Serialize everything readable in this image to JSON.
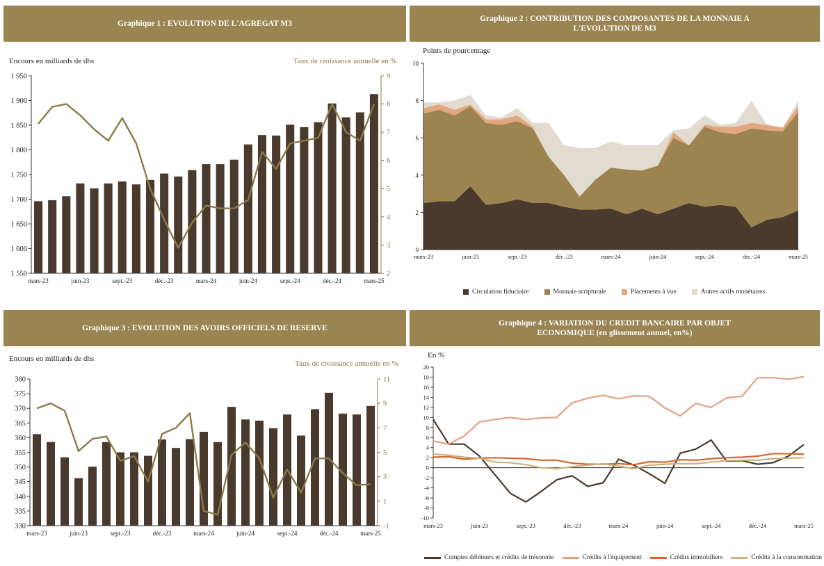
{
  "chart_data": [
    {
      "id": "c1",
      "type": "bar+line",
      "title": "Graphique 1 : EVOLUTION DE L'AGREGAT M3",
      "ylabel": "Encours en milliards de dhs",
      "y2label": "Taux de croissance annuelle en %",
      "ylim": [
        1550,
        1950
      ],
      "y2lim": [
        2,
        9
      ],
      "yticks": [
        "1 550",
        "1 600",
        "1 650",
        "1 700",
        "1 750",
        "1 800",
        "1 850",
        "1 900",
        "1 950"
      ],
      "y2ticks": [
        "2",
        "3",
        "4",
        "5",
        "6",
        "7",
        "8",
        "9"
      ],
      "xticklabels": [
        "mars-23",
        "juin-23",
        "sept.-23",
        "déc.-23",
        "mars-24",
        "juin-24",
        "sept.-24",
        "déc.-24",
        "mars-25"
      ],
      "bars": [
        1696,
        1698,
        1706,
        1732,
        1722,
        1732,
        1736,
        1730,
        1739,
        1752,
        1746,
        1759,
        1771,
        1771,
        1780,
        1811,
        1830,
        1829,
        1851,
        1846,
        1856,
        1894,
        1866,
        1876,
        1913
      ],
      "line": [
        7.3,
        7.9,
        8.0,
        7.6,
        7.1,
        6.7,
        7.5,
        6.6,
        5.0,
        3.9,
        2.9,
        3.8,
        4.4,
        4.3,
        4.3,
        4.6,
        6.3,
        5.7,
        6.6,
        6.7,
        6.8,
        8.0,
        7.0,
        6.7,
        8.0
      ],
      "colors": {
        "bar": "#4a3a2e",
        "line": "#8a7a4a"
      }
    },
    {
      "id": "c2",
      "type": "area",
      "title": "Graphique 2 : CONTRIBUTION DES COMPOSANTES DE  LA MONNAIE A L'EVOLUTION DE M3",
      "ylabel": "Points de pourcentage",
      "ylim": [
        0,
        10
      ],
      "yticks": [
        "0",
        "2",
        "4",
        "6",
        "8",
        "10"
      ],
      "xticklabels": [
        "mars-23",
        "juin-23",
        "sept.-23",
        "déc.-23",
        "mars-24",
        "juin-24",
        "sept.-24",
        "déc.-24",
        "mars-25"
      ],
      "series": [
        {
          "name": "Circulation fiduciaire",
          "color": "#4a3a2e",
          "values": [
            2.5,
            2.6,
            2.6,
            3.4,
            2.4,
            2.5,
            2.7,
            2.5,
            2.5,
            2.3,
            2.15,
            2.15,
            2.2,
            1.9,
            2.2,
            1.9,
            2.2,
            2.5,
            2.3,
            2.4,
            2.3,
            1.2,
            1.6,
            1.75,
            2.1
          ]
        },
        {
          "name": "Monnaie scripturale",
          "color": "#9c8450",
          "values": [
            4.8,
            4.9,
            4.6,
            4.3,
            4.4,
            4.2,
            4.2,
            4.0,
            2.5,
            1.7,
            0.7,
            1.6,
            2.2,
            2.4,
            2.05,
            2.6,
            3.8,
            3.1,
            4.3,
            3.9,
            3.9,
            5.3,
            4.8,
            4.6,
            5.3
          ]
        },
        {
          "name": "Placements à vue",
          "color": "#e2a77f",
          "values": [
            0.3,
            0.3,
            0.3,
            0.1,
            0.2,
            0.3,
            0.3,
            0.1,
            0.0,
            0.0,
            0.0,
            0.0,
            0.0,
            0.0,
            0.0,
            0.0,
            0.3,
            0.0,
            0.1,
            0.3,
            0.4,
            0.3,
            0.3,
            0.2,
            0.3
          ]
        },
        {
          "name": "Autres actifs monétaires",
          "color": "#e2dbd0",
          "values": [
            0.3,
            0.1,
            0.5,
            0.5,
            0.2,
            0.1,
            0.4,
            0.2,
            1.8,
            1.6,
            2.6,
            1.7,
            1.4,
            1.3,
            1.35,
            1.1,
            0.1,
            0.9,
            0.5,
            0.1,
            0.2,
            1.2,
            0.0,
            0.0,
            0.3
          ]
        }
      ]
    },
    {
      "id": "c3",
      "type": "bar+line",
      "title": "Graphique 3 : EVOLUTION DES AVOIRS OFFICIELS DE RESERVE",
      "ylabel": "Encours en milliards de dhs",
      "y2label": "Taux de croissance annuelle en %",
      "ylim": [
        330,
        380
      ],
      "y2lim": [
        -1,
        11
      ],
      "yticks": [
        "330",
        "335",
        "340",
        "345",
        "350",
        "355",
        "360",
        "365",
        "370",
        "375",
        "380"
      ],
      "y2ticks": [
        "-1",
        "1",
        "3",
        "5",
        "7",
        "9",
        "11"
      ],
      "xticklabels": [
        "mars-23",
        "juin-23",
        "sept.-23",
        "déc.-23",
        "mars-24",
        "juin-24",
        "sept.-24",
        "déc.-24",
        "mars-25"
      ],
      "bars": [
        361.2,
        358.5,
        353.3,
        346.2,
        350.1,
        358.5,
        355.0,
        355.0,
        353.8,
        359.4,
        356.5,
        359.5,
        362.0,
        358.5,
        370.5,
        366.2,
        365.8,
        363.2,
        367.9,
        360.7,
        369.7,
        375.3,
        368.2,
        367.9,
        370.8
      ],
      "line": [
        8.6,
        9.0,
        8.4,
        5.1,
        6.1,
        6.3,
        4.3,
        4.7,
        2.6,
        6.5,
        7.0,
        8.2,
        0.2,
        -0.1,
        4.8,
        5.8,
        4.5,
        1.3,
        3.6,
        1.7,
        4.5,
        4.5,
        3.3,
        2.3,
        2.4
      ],
      "colors": {
        "bar": "#4a3a2e",
        "line": "#8a7a4a"
      }
    },
    {
      "id": "c4",
      "type": "line",
      "title": "Graphique 4 : VARIATION DU CREDIT BANCAIRE PAR OBJET ECONOMIQUE (en glissement annuel, en%)",
      "ylabel": "En %",
      "ylim": [
        -10,
        20
      ],
      "yticks": [
        "-10",
        "-8",
        "-6",
        "-4",
        "-2",
        "0",
        "2",
        "4",
        "6",
        "8",
        "10",
        "12",
        "14",
        "16",
        "18",
        "20"
      ],
      "xticklabels": [
        "mars-23",
        "juin-23",
        "sept.-23",
        "déc.-23",
        "mars-24",
        "juin-24",
        "sept.-24",
        "déc.-24",
        "mars-25"
      ],
      "series": [
        {
          "name": "Comptes débiteurs et crédits de trésorerie",
          "color": "#4a3a2e",
          "values": [
            9.6,
            4.7,
            4.7,
            2.3,
            -1.4,
            -5.1,
            -6.8,
            -4.7,
            -2.4,
            -1.6,
            -3.7,
            -3.0,
            1.7,
            0.5,
            -1.2,
            -3.1,
            2.9,
            3.7,
            5.5,
            1.3,
            1.4,
            0.7,
            1.0,
            2.3,
            4.6
          ]
        },
        {
          "name": "Crédits à l'équipement",
          "color": "#e6a07f",
          "values": [
            5.3,
            4.7,
            6.3,
            9.1,
            9.6,
            10.0,
            9.6,
            9.9,
            10.0,
            12.9,
            13.8,
            14.4,
            13.7,
            14.3,
            14.2,
            11.9,
            10.3,
            12.8,
            12.0,
            13.9,
            14.2,
            17.9,
            17.9,
            17.6,
            18.1
          ]
        },
        {
          "name": "Crédits immobiliers",
          "color": "#d9642a",
          "values": [
            2.1,
            2.2,
            1.7,
            1.9,
            2.0,
            1.9,
            1.8,
            1.5,
            1.5,
            0.9,
            0.7,
            0.7,
            0.8,
            0.6,
            1.2,
            1.1,
            1.6,
            1.5,
            1.8,
            2.0,
            2.1,
            2.3,
            2.8,
            2.8,
            2.7
          ]
        },
        {
          "name": "Crédits à la consommation",
          "color": "#cdb27c",
          "values": [
            2.7,
            2.5,
            2.1,
            1.9,
            1.1,
            1.0,
            0.6,
            0.0,
            -0.2,
            0.2,
            0.5,
            0.8,
            0.3,
            -0.2,
            0.5,
            0.7,
            0.8,
            0.8,
            1.1,
            1.4,
            1.5,
            1.5,
            1.8,
            1.9,
            2.0
          ]
        }
      ]
    }
  ]
}
